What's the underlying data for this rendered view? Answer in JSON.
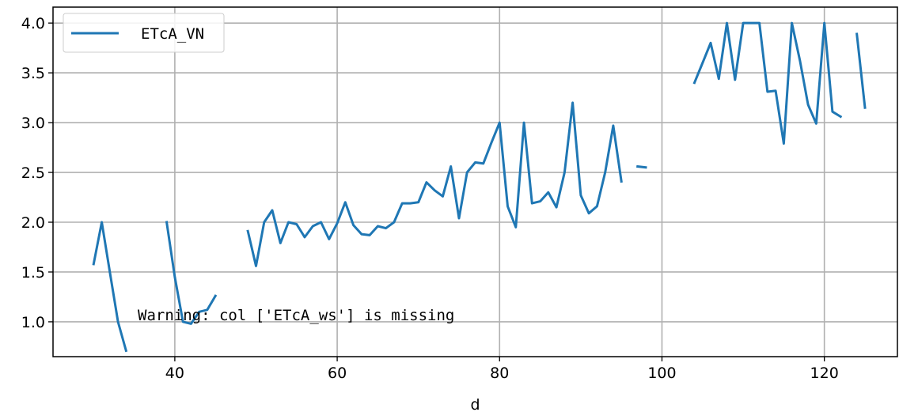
{
  "chart_data": {
    "type": "line",
    "xlabel": "d",
    "ylabel": "",
    "xlim": [
      25,
      129
    ],
    "ylim": [
      0.65,
      4.16
    ],
    "x_ticks": [
      40,
      60,
      80,
      100,
      120
    ],
    "y_ticks": [
      1.0,
      1.5,
      2.0,
      2.5,
      3.0,
      3.5,
      4.0
    ],
    "y_tick_labels": [
      "1.0",
      "1.5",
      "2.0",
      "2.5",
      "3.0",
      "3.5",
      "4.0"
    ],
    "grid": true,
    "legend_position": "upper-left",
    "series": [
      {
        "name": "ETcA_VN",
        "color": "#1f77b4",
        "segments": [
          [
            [
              30,
              1.58
            ],
            [
              31,
              2.0
            ],
            [
              32,
              1.5
            ],
            [
              33,
              1.0
            ],
            [
              34,
              0.71
            ]
          ],
          [
            [
              39,
              2.0
            ],
            [
              40,
              1.45
            ],
            [
              41,
              1.0
            ],
            [
              42,
              0.98
            ],
            [
              43,
              1.1
            ],
            [
              44,
              1.12
            ],
            [
              45,
              1.26
            ]
          ],
          [
            [
              49,
              1.91
            ],
            [
              50,
              1.56
            ],
            [
              51,
              2.0
            ],
            [
              52,
              2.12
            ],
            [
              53,
              1.79
            ],
            [
              54,
              2.0
            ],
            [
              55,
              1.98
            ],
            [
              56,
              1.85
            ],
            [
              57,
              1.96
            ],
            [
              58,
              2.0
            ],
            [
              59,
              1.83
            ],
            [
              60,
              1.99
            ],
            [
              61,
              2.2
            ],
            [
              62,
              1.97
            ],
            [
              63,
              1.88
            ],
            [
              64,
              1.87
            ],
            [
              65,
              1.96
            ],
            [
              66,
              1.94
            ],
            [
              67,
              2.0
            ],
            [
              68,
              2.19
            ],
            [
              69,
              2.19
            ],
            [
              70,
              2.2
            ],
            [
              71,
              2.4
            ],
            [
              72,
              2.32
            ],
            [
              73,
              2.26
            ],
            [
              74,
              2.56
            ],
            [
              75,
              2.04
            ],
            [
              76,
              2.5
            ],
            [
              77,
              2.6
            ],
            [
              78,
              2.59
            ],
            [
              79,
              2.8
            ],
            [
              80,
              3.0
            ],
            [
              81,
              2.16
            ],
            [
              82,
              1.95
            ],
            [
              83,
              3.0
            ],
            [
              84,
              2.19
            ],
            [
              85,
              2.21
            ],
            [
              86,
              2.3
            ],
            [
              87,
              2.15
            ],
            [
              88,
              2.5
            ],
            [
              89,
              3.2
            ],
            [
              90,
              2.27
            ],
            [
              91,
              2.09
            ],
            [
              92,
              2.16
            ],
            [
              93,
              2.5
            ],
            [
              94,
              2.97
            ],
            [
              95,
              2.41
            ]
          ],
          [
            [
              97,
              2.56
            ],
            [
              98,
              2.55
            ]
          ],
          [
            [
              104,
              3.4
            ],
            [
              105,
              3.6
            ],
            [
              106,
              3.8
            ],
            [
              107,
              3.44
            ],
            [
              108,
              4.0
            ],
            [
              109,
              3.43
            ],
            [
              110,
              4.0
            ],
            [
              111,
              4.0
            ],
            [
              112,
              4.0
            ],
            [
              113,
              3.31
            ],
            [
              114,
              3.32
            ],
            [
              115,
              2.79
            ],
            [
              116,
              4.0
            ],
            [
              117,
              3.62
            ],
            [
              118,
              3.18
            ],
            [
              119,
              2.99
            ],
            [
              120,
              4.0
            ],
            [
              121,
              3.11
            ],
            [
              122,
              3.06
            ]
          ],
          [
            [
              124,
              3.89
            ],
            [
              125,
              3.15
            ]
          ]
        ]
      }
    ],
    "annotations": [
      "Warning: col ['ETcA_ws'] is missing"
    ]
  }
}
